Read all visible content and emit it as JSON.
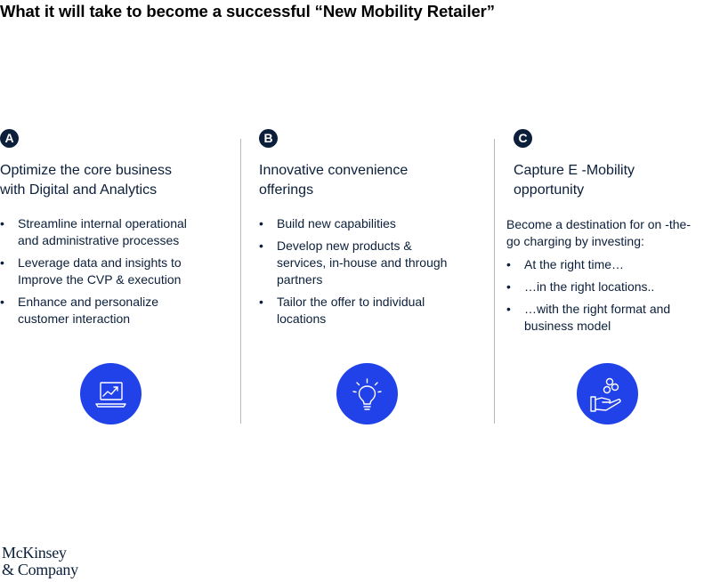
{
  "title": "What it will take to become a successful  “New Mobility Retailer”",
  "columns": [
    {
      "badge": "A",
      "heading_line1": "Optimize the core business",
      "heading_line2": "with Digital and Analytics",
      "bullets": [
        {
          "line1": "Streamline internal operational",
          "line2": "and administrative processes"
        },
        {
          "line1": "Leverage data and insights to",
          "line2": "Improve the CVP & execution"
        },
        {
          "line1": "Enhance and personalize",
          "line2": "customer interaction"
        }
      ],
      "icon": "laptop-chart-icon"
    },
    {
      "badge": "B",
      "heading_line1": "Innovative convenience",
      "heading_line2": "offerings",
      "bullets": [
        {
          "line1": "Build new capabilities"
        },
        {
          "line1": "Develop new products &",
          "line2": "services, in-house and through",
          "line3": "partners"
        },
        {
          "line1": "Tailor the offer to individual",
          "line2": "locations"
        }
      ],
      "icon": "lightbulb-icon"
    },
    {
      "badge": "C",
      "heading_line1": "Capture E -Mobility",
      "heading_line2": "opportunity",
      "intro_line1": "Become a destination for on -the-",
      "intro_line2": "go charging by investing:",
      "bullets": [
        {
          "line1": "At the right time…"
        },
        {
          "line1": "…in the right locations.."
        },
        {
          "line1": "…with the right format and",
          "line2": "business model"
        }
      ],
      "icon": "hand-coins-icon"
    }
  ],
  "bullet_glyph": "•",
  "logo": {
    "line1": "McKinsey",
    "line2": "& Company"
  },
  "colors": {
    "navy": "#0b1f3a",
    "icon_blue": "#2142e8",
    "divider": "#b9b9b9"
  }
}
